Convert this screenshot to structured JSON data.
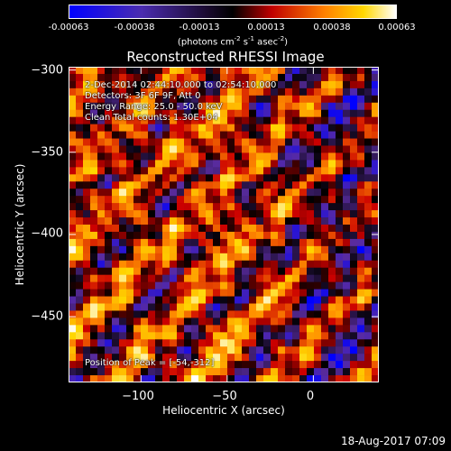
{
  "colorbar": {
    "ticks": [
      "-0.00063",
      "-0.00038",
      "-0.00013",
      "0.00013",
      "0.00038",
      "0.00063"
    ],
    "units_main": "(photons cm",
    "units_exp1": "-2",
    "units_mid": " s",
    "units_exp2": "-1",
    "units_mid2": " asec",
    "units_exp3": "-2",
    "units_end": ")"
  },
  "title": "Reconstructed RHESSI Image",
  "annotations": {
    "line1": " 2-Dec-2014 02:44:10.000 to 02:54:10.000",
    "line2": "Detectors: 3F 6F 9F, Att 0",
    "line3": "Energy Range: 25.0 - 50.0 keV",
    "line4": "Clean    Total counts: 1.30E+04",
    "peak": "Position of Peak = [-54,-312]"
  },
  "timestamp": "18-Aug-2017 07:09",
  "chart_data": {
    "type": "heatmap",
    "title": "Reconstructed RHESSI Image",
    "xlabel": "Heliocentric X (arcsec)",
    "ylabel": "Heliocentric Y (arcsec)",
    "xlim": [
      -142,
      38
    ],
    "ylim": [
      -490,
      -298
    ],
    "x_ticks": [
      "−100",
      "−50",
      "0"
    ],
    "x_tick_values": [
      -100,
      -50,
      0
    ],
    "y_ticks": [
      "−300",
      "−350",
      "−400",
      "−450"
    ],
    "y_tick_values": [
      -300,
      -350,
      -400,
      -450
    ],
    "colorbar_range": [
      -0.00063,
      0.00063
    ],
    "colormap": [
      "#0000ff",
      "#5a2ca0",
      "#000000",
      "#cc0000",
      "#ff8c00",
      "#ffd700",
      "#ffffff"
    ],
    "peak_position": [
      -54,
      -312
    ]
  }
}
